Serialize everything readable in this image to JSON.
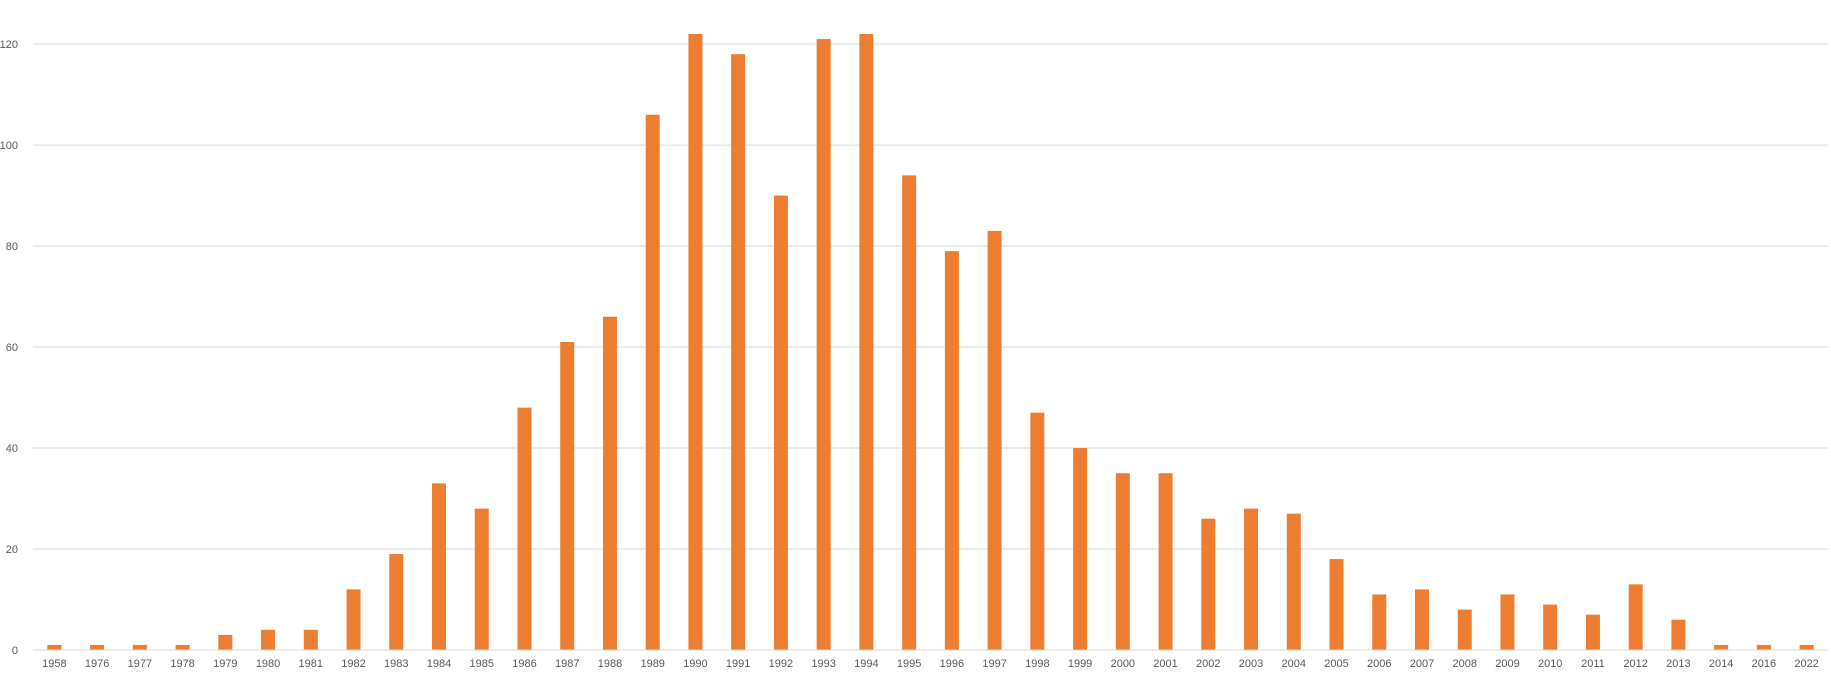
{
  "chart_data": {
    "type": "bar",
    "title": "",
    "xlabel": "",
    "ylabel": "",
    "ylim": [
      0,
      122
    ],
    "yticks": [
      0,
      20,
      40,
      60,
      80,
      100,
      120
    ],
    "grid": true,
    "legend": "none",
    "bar_color": "#ed7d31",
    "categories": [
      "1958",
      "1976",
      "1977",
      "1978",
      "1979",
      "1980",
      "1981",
      "1982",
      "1983",
      "1984",
      "1985",
      "1986",
      "1987",
      "1988",
      "1989",
      "1990",
      "1991",
      "1992",
      "1993",
      "1994",
      "1995",
      "1996",
      "1997",
      "1998",
      "1999",
      "2000",
      "2001",
      "2002",
      "2003",
      "2004",
      "2005",
      "2006",
      "2007",
      "2008",
      "2009",
      "2010",
      "2011",
      "2012",
      "2013",
      "2014",
      "2016",
      "2022"
    ],
    "values": [
      1,
      1,
      1,
      1,
      3,
      4,
      4,
      12,
      19,
      33,
      28,
      48,
      61,
      66,
      106,
      122,
      118,
      90,
      121,
      122,
      94,
      79,
      83,
      47,
      40,
      35,
      35,
      26,
      28,
      27,
      18,
      11,
      12,
      8,
      11,
      9,
      7,
      13,
      6,
      1,
      1,
      1
    ]
  }
}
